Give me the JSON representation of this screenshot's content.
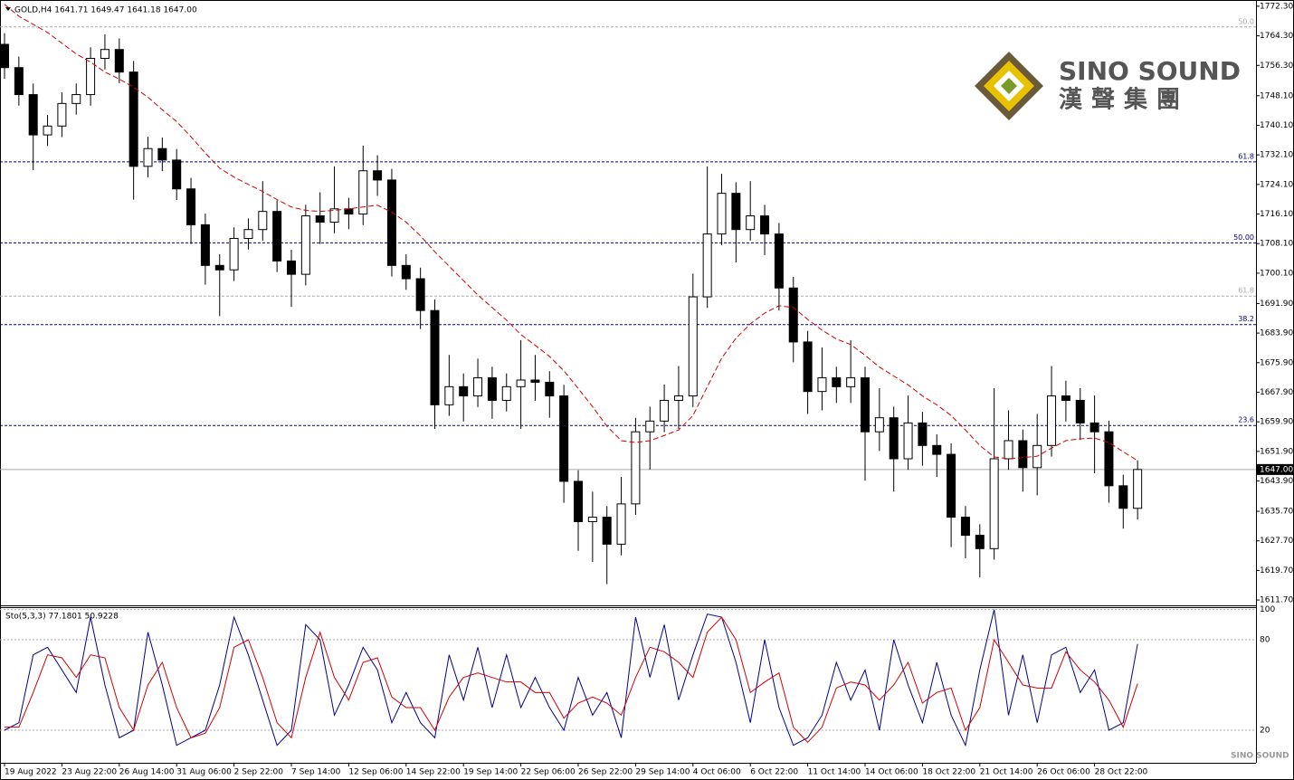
{
  "chart_data": [
    {
      "type": "candlestick",
      "title": "GOLD,H4  1641.71 1649.47 1641.18 1647.00",
      "categories": [
        "19 Aug 2022",
        null,
        null,
        null,
        "23 Aug 22:00",
        null,
        null,
        null,
        "26 Aug 14:00",
        null,
        null,
        null,
        "31 Aug 06:00",
        null,
        null,
        null,
        "2 Sep 22:00",
        null,
        null,
        null,
        "7 Sep 14:00",
        null,
        null,
        null,
        "12 Sep 06:00",
        null,
        null,
        null,
        "14 Sep 22:00",
        null,
        null,
        null,
        "19 Sep 14:00",
        null,
        null,
        null,
        "22 Sep 06:00",
        null,
        null,
        null,
        "26 Sep 22:00",
        null,
        null,
        null,
        "29 Sep 14:00",
        null,
        null,
        null,
        "4 Oct 06:00",
        null,
        null,
        null,
        "6 Oct 22:00",
        null,
        null,
        null,
        "11 Oct 14:00",
        null,
        null,
        null,
        "14 Oct 06:00",
        null,
        null,
        null,
        "18 Oct 22:00",
        null,
        null,
        null,
        "21 Oct 14:00",
        null,
        null,
        null,
        "26 Oct 06:00",
        null,
        null,
        null,
        "28 Oct 22:00",
        null,
        null,
        null
      ],
      "open": [
        1762.0,
        1755.7,
        1748.4,
        1737.5,
        1739.9,
        1746.0,
        1748.4,
        1758.2,
        1760.6,
        1754.5,
        1729.0,
        1733.8,
        1730.7,
        1722.9,
        1713.2,
        1702.2,
        1701.0,
        1709.5,
        1711.9,
        1716.8,
        1703.4,
        1699.8,
        1715.6,
        1713.9,
        1717.5,
        1716.1,
        1727.8,
        1725.3,
        1702.2,
        1698.6,
        1690.0,
        1664.5,
        1669.4,
        1666.9,
        1671.8,
        1665.7,
        1669.4,
        1671.2,
        1670.6,
        1666.9,
        1643.8,
        1632.9,
        1634.1,
        1626.8,
        1637.7,
        1657.2,
        1660.1,
        1665.7,
        1666.9,
        1693.7,
        1710.7,
        1721.7,
        1711.9,
        1715.6,
        1710.7,
        1696.1,
        1681.5,
        1668.1,
        1671.8,
        1669.4,
        1671.8,
        1657.2,
        1661.0,
        1649.9,
        1659.6,
        1653.5,
        1651.1,
        1634.1,
        1629.2,
        1625.6,
        1649.9,
        1654.8,
        1647.5,
        1653.5,
        1666.9,
        1665.7,
        1659.6,
        1657.2,
        1642.6,
        1636.5
      ],
      "high": [
        1765.0,
        1758.7,
        1751.4,
        1742.9,
        1749.0,
        1751.4,
        1761.2,
        1764.7,
        1763.6,
        1757.5,
        1737.0,
        1736.8,
        1733.7,
        1725.9,
        1716.2,
        1705.2,
        1712.5,
        1714.9,
        1725.0,
        1719.8,
        1706.4,
        1718.6,
        1722.0,
        1729.0,
        1720.5,
        1734.6,
        1732.0,
        1728.3,
        1705.2,
        1701.6,
        1693.0,
        1678.0,
        1673.0,
        1677.0,
        1674.8,
        1673.0,
        1682.0,
        1678.0,
        1673.6,
        1669.9,
        1646.8,
        1641.0,
        1637.1,
        1645.0,
        1661.0,
        1664.0,
        1670.0,
        1675.0,
        1700.0,
        1729.0,
        1727.0,
        1724.7,
        1725.0,
        1718.6,
        1713.7,
        1699.1,
        1684.5,
        1680.0,
        1674.8,
        1682.0,
        1674.8,
        1669.0,
        1664.0,
        1667.0,
        1662.6,
        1656.5,
        1654.1,
        1637.1,
        1632.2,
        1669.0,
        1663.0,
        1657.8,
        1662.0,
        1675.0,
        1671.0,
        1669.0,
        1667.0,
        1660.2,
        1645.6,
        1649.5
      ],
      "low": [
        1752.7,
        1745.4,
        1728.0,
        1734.5,
        1736.9,
        1743.0,
        1745.4,
        1755.2,
        1751.5,
        1720.0,
        1726.0,
        1727.7,
        1719.9,
        1708.0,
        1697.0,
        1688.5,
        1698.0,
        1706.5,
        1708.9,
        1700.4,
        1691.0,
        1696.8,
        1708.0,
        1710.9,
        1712.0,
        1713.1,
        1721.0,
        1699.2,
        1695.6,
        1685.0,
        1658.0,
        1661.5,
        1660.0,
        1663.9,
        1660.7,
        1662.7,
        1658.0,
        1665.6,
        1661.0,
        1638.0,
        1625.0,
        1622.0,
        1616.0,
        1623.8,
        1634.7,
        1647.0,
        1657.1,
        1658.0,
        1663.9,
        1690.7,
        1707.7,
        1703.0,
        1708.9,
        1705.0,
        1690.0,
        1676.0,
        1662.0,
        1663.0,
        1665.0,
        1665.0,
        1644.0,
        1652.0,
        1641.0,
        1646.9,
        1648.0,
        1645.0,
        1626.0,
        1623.0,
        1617.8,
        1622.6,
        1646.9,
        1641.0,
        1640.0,
        1650.5,
        1660.0,
        1655.0,
        1646.0,
        1638.0,
        1631.0,
        1633.5
      ],
      "close": [
        1755.7,
        1748.4,
        1737.5,
        1739.9,
        1746.0,
        1748.4,
        1758.2,
        1760.6,
        1754.5,
        1729.0,
        1733.8,
        1730.7,
        1722.9,
        1713.2,
        1702.2,
        1701.0,
        1709.5,
        1711.9,
        1716.8,
        1703.4,
        1699.8,
        1715.6,
        1713.9,
        1717.5,
        1716.1,
        1727.8,
        1725.3,
        1702.2,
        1698.6,
        1690.0,
        1664.5,
        1669.4,
        1666.9,
        1671.8,
        1665.7,
        1669.4,
        1671.2,
        1670.6,
        1666.9,
        1643.8,
        1632.9,
        1634.1,
        1626.8,
        1637.7,
        1657.2,
        1660.1,
        1665.7,
        1666.9,
        1693.7,
        1710.7,
        1721.7,
        1711.9,
        1715.6,
        1710.7,
        1696.1,
        1681.5,
        1668.1,
        1671.8,
        1669.4,
        1671.8,
        1657.2,
        1661.0,
        1649.9,
        1659.6,
        1653.5,
        1651.1,
        1634.1,
        1629.2,
        1625.6,
        1649.9,
        1654.8,
        1647.5,
        1653.5,
        1666.9,
        1665.7,
        1659.6,
        1657.2,
        1642.6,
        1636.5,
        1647.0
      ],
      "ma": {
        "color": "#d00000",
        "values": [
          1772.8,
          1769.6,
          1767.4,
          1765.2,
          1762.3,
          1759.4,
          1757.2,
          1754.5,
          1752.6,
          1750.4,
          1747.7,
          1744.3,
          1741.1,
          1737.0,
          1732.6,
          1728.5,
          1726.1,
          1724.1,
          1722.2,
          1720.0,
          1718.0,
          1717.1,
          1716.8,
          1717.1,
          1717.5,
          1718.0,
          1718.5,
          1716.6,
          1713.9,
          1710.2,
          1705.9,
          1702.0,
          1698.1,
          1694.2,
          1690.8,
          1687.4,
          1683.5,
          1680.6,
          1677.6,
          1673.7,
          1668.9,
          1664.0,
          1658.7,
          1654.8,
          1654.3,
          1654.8,
          1656.2,
          1657.7,
          1661.6,
          1669.4,
          1677.1,
          1682.5,
          1686.4,
          1689.3,
          1691.3,
          1690.8,
          1687.6,
          1684.7,
          1682.3,
          1680.8,
          1677.9,
          1674.7,
          1672.3,
          1669.9,
          1666.9,
          1664.5,
          1661.6,
          1657.7,
          1653.5,
          1650.4,
          1649.9,
          1650.2,
          1650.6,
          1652.8,
          1654.8,
          1655.3,
          1655.5,
          1654.3,
          1651.8,
          1649.4
        ]
      },
      "levels": [
        {
          "label": "50.0",
          "value": 1766.7,
          "color": "#aaaaaa"
        },
        {
          "label": "61.8",
          "value": 1730.2,
          "color": "#000080"
        },
        {
          "label": "50.00",
          "value": 1708.3,
          "color": "#000080"
        },
        {
          "label": "61.8",
          "value": 1693.9,
          "color": "#aaaaaa"
        },
        {
          "label": "38.2",
          "value": 1686.2,
          "color": "#000080"
        },
        {
          "label": "23.6",
          "value": 1658.9,
          "color": "#000080"
        }
      ],
      "price_line": {
        "value": 1647.0,
        "label": "1647.00"
      },
      "ylim": [
        1610.5,
        1773.5
      ],
      "yticks": [
        {
          "value": 1772.3,
          "label": "1772.30"
        },
        {
          "value": 1764.3,
          "label": "1764.30"
        },
        {
          "value": 1756.3,
          "label": "1756.30"
        },
        {
          "value": 1748.1,
          "label": "1748.10"
        },
        {
          "value": 1740.1,
          "label": "1740.10"
        },
        {
          "value": 1732.1,
          "label": "1732.10"
        },
        {
          "value": 1724.1,
          "label": "1724.10"
        },
        {
          "value": 1716.1,
          "label": "1716.10"
        },
        {
          "value": 1708.1,
          "label": "1708.10"
        },
        {
          "value": 1700.1,
          "label": "1700.10"
        },
        {
          "value": 1691.9,
          "label": "1691.90"
        },
        {
          "value": 1683.9,
          "label": "1683.90"
        },
        {
          "value": 1675.9,
          "label": "1675.90"
        },
        {
          "value": 1667.9,
          "label": "1667.90"
        },
        {
          "value": 1659.9,
          "label": "1659.90"
        },
        {
          "value": 1651.9,
          "label": "1651.90"
        },
        {
          "value": 1643.9,
          "label": "1643.90"
        },
        {
          "value": 1635.7,
          "label": "1635.70"
        },
        {
          "value": 1627.7,
          "label": "1627.70"
        },
        {
          "value": 1619.7,
          "label": "1619.70"
        },
        {
          "value": 1611.7,
          "label": "1611.70"
        }
      ]
    },
    {
      "type": "line",
      "title": "Sto(5,3,3) 77.1801 50.9228",
      "series": [
        {
          "color": "#00008b",
          "values": [
            20,
            25,
            70,
            75,
            60,
            45,
            95,
            50,
            15,
            20,
            85,
            50,
            10,
            15,
            20,
            50,
            95,
            70,
            40,
            10,
            20,
            90,
            80,
            30,
            50,
            75,
            60,
            25,
            45,
            25,
            15,
            70,
            40,
            75,
            35,
            70,
            35,
            55,
            35,
            20,
            55,
            30,
            45,
            15,
            95,
            55,
            90,
            40,
            70,
            97,
            95,
            65,
            25,
            80,
            35,
            10,
            15,
            30,
            65,
            40,
            60,
            20,
            80,
            50,
            25,
            65,
            30,
            10,
            60,
            100,
            30,
            70,
            25,
            70,
            75,
            45,
            60,
            20,
            25,
            77.2
          ]
        },
        {
          "color": "#d00000",
          "values": [
            22,
            22,
            45,
            70,
            68,
            55,
            70,
            68,
            35,
            20,
            50,
            65,
            35,
            15,
            18,
            35,
            75,
            80,
            55,
            25,
            15,
            55,
            85,
            55,
            40,
            65,
            68,
            42,
            35,
            35,
            20,
            42,
            55,
            58,
            55,
            52,
            52,
            45,
            45,
            28,
            38,
            42,
            38,
            30,
            55,
            75,
            72,
            65,
            55,
            85,
            95,
            80,
            45,
            52,
            58,
            22,
            12,
            22,
            48,
            52,
            50,
            40,
            50,
            65,
            38,
            45,
            48,
            20,
            35,
            80,
            65,
            50,
            48,
            48,
            72,
            60,
            52,
            40,
            22,
            50.9
          ]
        }
      ],
      "ylim": [
        -1,
        101
      ],
      "yticks": [
        100,
        80,
        20
      ]
    },
    {
      "type": "logo",
      "name": "SINO SOUND",
      "subtitle": "漢聲集團"
    }
  ]
}
